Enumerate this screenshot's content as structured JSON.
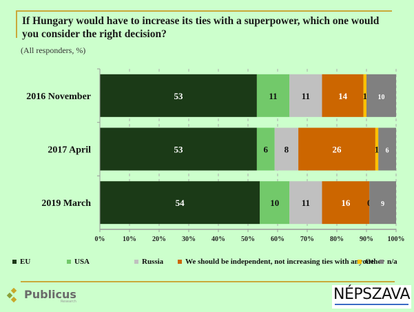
{
  "title": "If Hungary would have to increase its ties with a superpower, which one would you consider the right decision?",
  "subtitle": "(All responders, %)",
  "chart_data": {
    "type": "bar",
    "orientation": "horizontal",
    "stacked": true,
    "title": "If Hungary would have to increase its ties with a superpower, which one would you consider the right decision?",
    "subtitle": "(All responders, %)",
    "categories": [
      "2016 November",
      "2017 April",
      "2019 March"
    ],
    "series": [
      {
        "name": "EU",
        "color": "#1b3a17",
        "label_color": "#ffffff",
        "values": [
          53,
          53,
          54
        ]
      },
      {
        "name": "USA",
        "color": "#72c96a",
        "label_color": "#111111",
        "values": [
          11,
          6,
          10
        ]
      },
      {
        "name": "Russia",
        "color": "#c0c0c0",
        "label_color": "#111111",
        "values": [
          11,
          8,
          11
        ]
      },
      {
        "name": "We should be independent, not increasing ties with anyone",
        "color": "#cc6600",
        "label_color": "#ffffff",
        "values": [
          14,
          26,
          16
        ]
      },
      {
        "name": "Other",
        "color": "#ffc000",
        "label_color": "#111111",
        "values": [
          1,
          1,
          0
        ]
      },
      {
        "name": "n/a",
        "color": "#808080",
        "label_color": "#ffffff",
        "values": [
          10,
          6,
          9
        ]
      }
    ],
    "xlim": [
      0,
      100
    ],
    "xticks": [
      "0%",
      "10%",
      "20%",
      "30%",
      "40%",
      "50%",
      "60%",
      "70%",
      "80%",
      "90%",
      "100%"
    ],
    "xlabel": "",
    "ylabel": "",
    "grid": "vertical dashed",
    "legend": "bottom"
  },
  "logos": {
    "left": {
      "name": "Publicus",
      "sub": "Research"
    },
    "right": {
      "name": "NÉPSZAVA"
    }
  }
}
